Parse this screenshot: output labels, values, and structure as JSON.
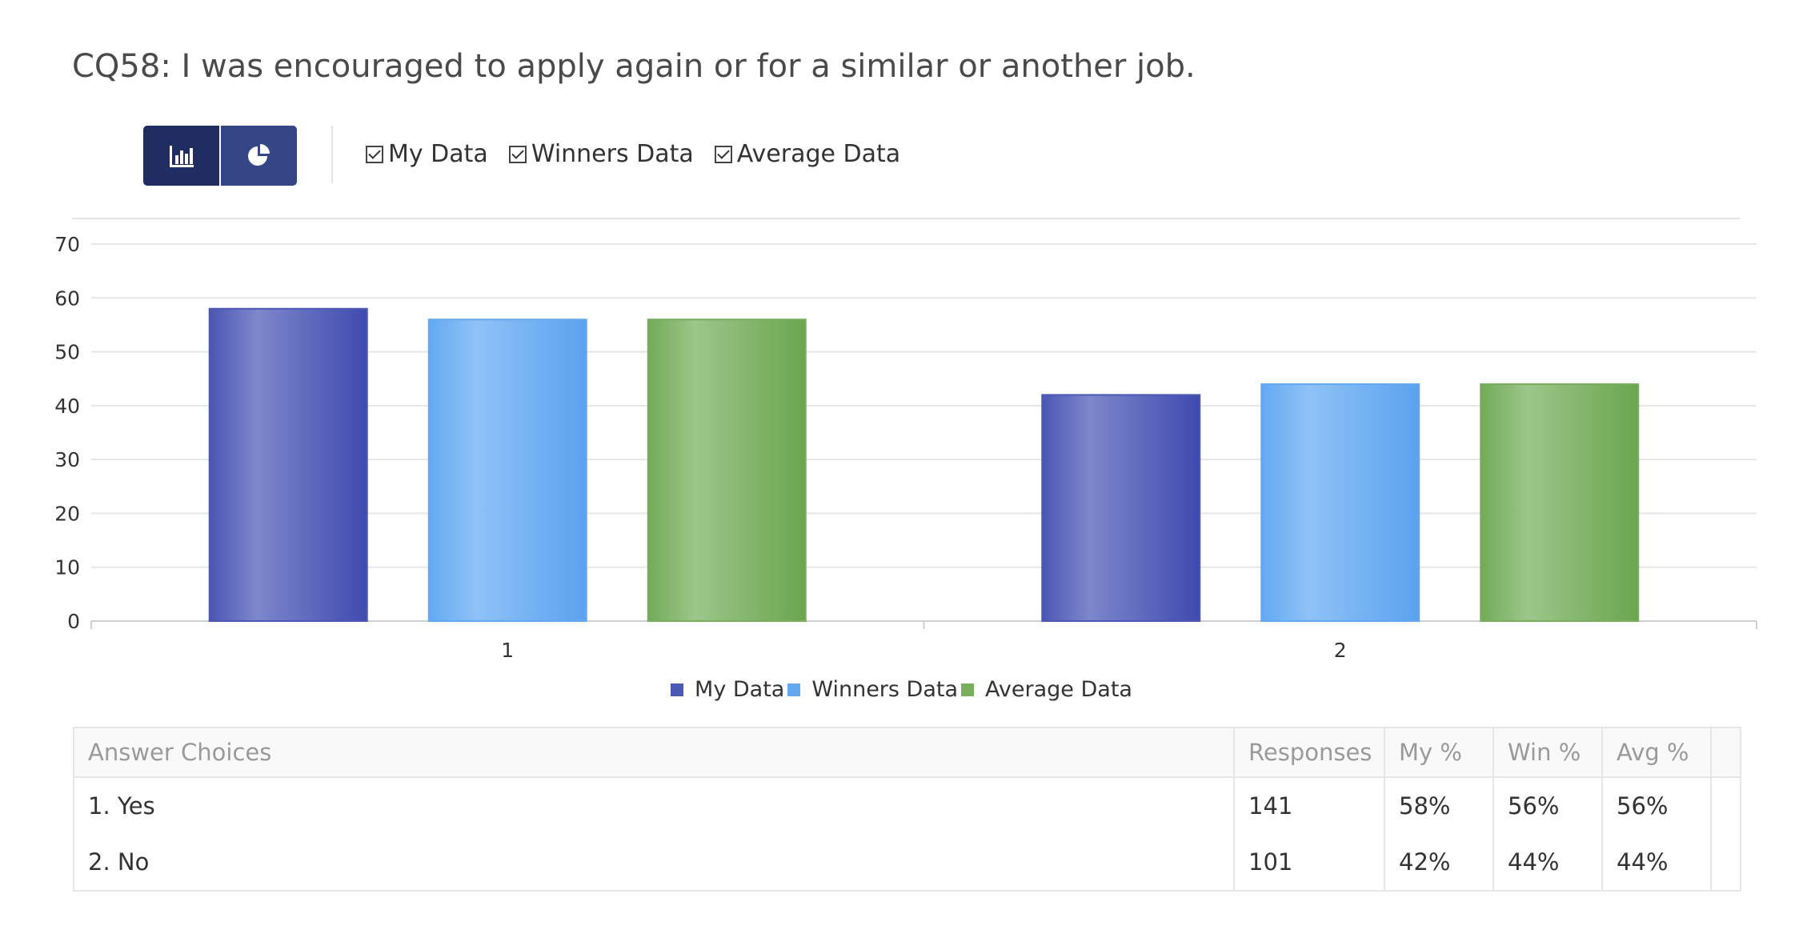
{
  "title": "CQ58: I was encouraged to apply again or for a similar or another job.",
  "toolbar": {
    "buttons": [
      {
        "icon": "bar-chart-icon",
        "active": true
      },
      {
        "icon": "pie-chart-icon",
        "active": false
      }
    ]
  },
  "checkboxes": [
    {
      "label": "My Data",
      "checked": true
    },
    {
      "label": "Winners Data",
      "checked": true
    },
    {
      "label": "Average Data",
      "checked": true
    }
  ],
  "chart_data": {
    "type": "bar",
    "categories": [
      "1",
      "2"
    ],
    "series": [
      {
        "name": "My Data",
        "values": [
          58,
          42
        ],
        "color": "#4c58b5"
      },
      {
        "name": "Winners Data",
        "values": [
          56,
          44
        ],
        "color": "#62a9f0"
      },
      {
        "name": "Average Data",
        "values": [
          56,
          44
        ],
        "color": "#78ae5d"
      }
    ],
    "yticks": [
      0,
      10,
      20,
      30,
      40,
      50,
      60,
      70
    ],
    "ylim": [
      0,
      70
    ],
    "grid": true,
    "legend": "bottom-center"
  },
  "table": {
    "headers": [
      "Answer Choices",
      "Responses",
      "My %",
      "Win %",
      "Avg %"
    ],
    "rows": [
      [
        "1. Yes",
        "141",
        "58%",
        "56%",
        "56%"
      ],
      [
        "2. No",
        "101",
        "42%",
        "44%",
        "44%"
      ]
    ]
  }
}
